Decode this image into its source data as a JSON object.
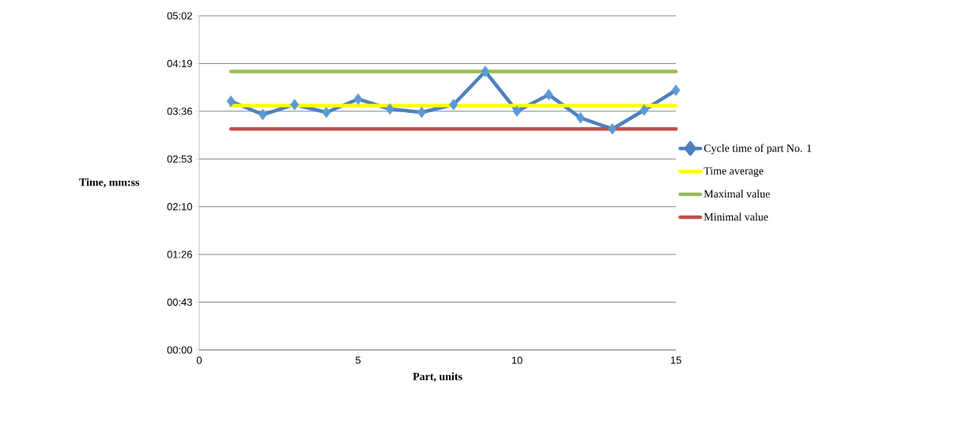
{
  "chart_data": {
    "type": "line",
    "xlabel": "Part, units",
    "ylabel": "Time, mm:ss",
    "xlim": [
      0,
      15
    ],
    "xticks": [
      0,
      5,
      10,
      15
    ],
    "ylim": [
      0,
      302.4
    ],
    "yticks": [
      {
        "value": 0,
        "label": "00:00"
      },
      {
        "value": 43.2,
        "label": "00:43"
      },
      {
        "value": 86.4,
        "label": "01:26"
      },
      {
        "value": 129.6,
        "label": "02:10"
      },
      {
        "value": 172.8,
        "label": "02:53"
      },
      {
        "value": 216,
        "label": "03:36"
      },
      {
        "value": 259.2,
        "label": "04:19"
      },
      {
        "value": 302.4,
        "label": "05:02"
      }
    ],
    "grid": "y",
    "legend": "right",
    "line_style": "solid",
    "series": [
      {
        "name": "Cycle time of part No. 1",
        "color": "#4f81bd",
        "marker": "diamond",
        "x": [
          1,
          2,
          3,
          4,
          5,
          6,
          7,
          8,
          9,
          10,
          11,
          12,
          13,
          14,
          15
        ],
        "values": [
          225,
          213,
          222,
          215,
          227,
          218,
          215,
          222,
          252,
          216,
          231,
          210,
          200,
          217,
          235
        ]
      },
      {
        "name": "Time average",
        "color": "#ffff00",
        "marker": "none",
        "x": [
          1,
          15
        ],
        "values": [
          221,
          221
        ]
      },
      {
        "name": "Maximal value",
        "color": "#9bbb59",
        "marker": "none",
        "x": [
          1,
          15
        ],
        "values": [
          252,
          252
        ]
      },
      {
        "name": "Minimal value",
        "color": "#c0504d",
        "marker": "none",
        "x": [
          1,
          15
        ],
        "values": [
          200,
          200
        ]
      }
    ]
  }
}
